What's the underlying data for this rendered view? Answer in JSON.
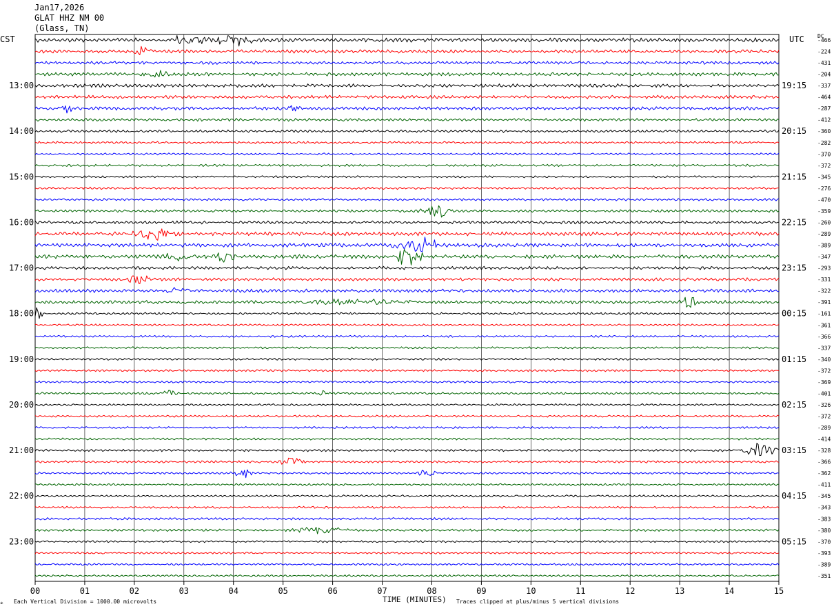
{
  "header": {
    "date": "Jan17,2026",
    "station": "GLAT HHZ NM 00",
    "location": "(Glass, TN)"
  },
  "left_tz": "CST",
  "right_tz": "UTC",
  "dc_label": "DC",
  "footer": {
    "scale": "Each Vertical Division = 1000.00 microvolts",
    "xlabel": "TIME (MINUTES)",
    "clip": "Traces clipped at plus/minus 5 vertical divisions"
  },
  "chart_data": {
    "type": "line",
    "title": "GLAT HHZ NM 00",
    "xlabel": "TIME (MINUTES)",
    "xlim": [
      0,
      15
    ],
    "x_ticks": [
      "00",
      "01",
      "02",
      "03",
      "04",
      "05",
      "06",
      "07",
      "08",
      "09",
      "10",
      "11",
      "12",
      "13",
      "14",
      "15"
    ],
    "left_time_labels": [
      "13:00",
      "14:00",
      "15:00",
      "16:00",
      "17:00",
      "18:00",
      "19:00",
      "20:00",
      "21:00",
      "22:00",
      "23:00"
    ],
    "right_time_labels": [
      "19:15",
      "20:15",
      "21:15",
      "22:15",
      "23:15",
      "00:15",
      "01:15",
      "02:15",
      "03:15",
      "04:15",
      "05:15"
    ],
    "trace_colors": [
      "#000000",
      "#ff0000",
      "#0000ff",
      "#006400"
    ],
    "dc_offsets": [
      "-466",
      "-224",
      "-431",
      "-204",
      "-337",
      "-464",
      "-287",
      "-412",
      "-360",
      "-282",
      "-370",
      "-372",
      "-345",
      "-276",
      "-470",
      "-359",
      "-260",
      "-289",
      "-389",
      "-347",
      "-293",
      "-331",
      "-322",
      "-391",
      "-161",
      "-361",
      "-366",
      "-337",
      "-340",
      "-372",
      "-369",
      "-401",
      "-326",
      "-372",
      "-289",
      "-414",
      "-328",
      "-366",
      "-362",
      "-411",
      "-345",
      "-343",
      "-383",
      "-380",
      "-370",
      "-393",
      "-389",
      "-351"
    ],
    "trace_amplitude": [
      3.2,
      2.6,
      2.4,
      2.6,
      2.6,
      2.6,
      2.6,
      2.2,
      2.0,
      1.8,
      1.6,
      1.8,
      1.6,
      1.8,
      1.8,
      2.0,
      2.4,
      3.0,
      3.0,
      3.0,
      2.4,
      2.4,
      2.6,
      2.6,
      1.8,
      1.6,
      1.6,
      1.6,
      1.6,
      1.6,
      1.6,
      1.8,
      1.6,
      1.6,
      1.6,
      1.6,
      1.8,
      1.8,
      1.6,
      1.6,
      1.6,
      1.6,
      1.8,
      1.8,
      1.6,
      1.6,
      1.6,
      1.6
    ],
    "events": [
      {
        "trace": 0,
        "minute": 3.1,
        "amp": 9,
        "dur": 0.5
      },
      {
        "trace": 0,
        "minute": 4.0,
        "amp": 10,
        "dur": 0.5
      },
      {
        "trace": 1,
        "minute": 2.2,
        "amp": 6,
        "dur": 0.3
      },
      {
        "trace": 3,
        "minute": 2.5,
        "amp": 6,
        "dur": 0.4
      },
      {
        "trace": 6,
        "minute": 0.6,
        "amp": 7,
        "dur": 0.2
      },
      {
        "trace": 6,
        "minute": 5.2,
        "amp": 6,
        "dur": 0.3
      },
      {
        "trace": 15,
        "minute": 8.1,
        "amp": 11,
        "dur": 0.4
      },
      {
        "trace": 17,
        "minute": 2.4,
        "amp": 11,
        "dur": 0.6
      },
      {
        "trace": 18,
        "minute": 7.6,
        "amp": 12,
        "dur": 0.5
      },
      {
        "trace": 18,
        "minute": 7.95,
        "amp": 11,
        "dur": 0.3
      },
      {
        "trace": 19,
        "minute": 7.5,
        "amp": 14,
        "dur": 0.4
      },
      {
        "trace": 19,
        "minute": 2.9,
        "amp": 7,
        "dur": 0.4
      },
      {
        "trace": 19,
        "minute": 3.8,
        "amp": 8,
        "dur": 0.3
      },
      {
        "trace": 21,
        "minute": 2.1,
        "amp": 7,
        "dur": 0.4
      },
      {
        "trace": 22,
        "minute": 2.9,
        "amp": 7,
        "dur": 0.3
      },
      {
        "trace": 23,
        "minute": 6.5,
        "amp": 5,
        "dur": 1.5
      },
      {
        "trace": 23,
        "minute": 13.2,
        "amp": 9,
        "dur": 0.3
      },
      {
        "trace": 24,
        "minute": 0.05,
        "amp": 8,
        "dur": 0.2
      },
      {
        "trace": 31,
        "minute": 2.7,
        "amp": 6,
        "dur": 0.2
      },
      {
        "trace": 31,
        "minute": 5.8,
        "amp": 6,
        "dur": 0.2
      },
      {
        "trace": 36,
        "minute": 14.6,
        "amp": 10,
        "dur": 0.5
      },
      {
        "trace": 37,
        "minute": 5.2,
        "amp": 6,
        "dur": 0.4
      },
      {
        "trace": 38,
        "minute": 4.2,
        "amp": 7,
        "dur": 0.3
      },
      {
        "trace": 38,
        "minute": 7.9,
        "amp": 6,
        "dur": 0.3
      },
      {
        "trace": 43,
        "minute": 5.8,
        "amp": 5,
        "dur": 0.8
      }
    ]
  }
}
